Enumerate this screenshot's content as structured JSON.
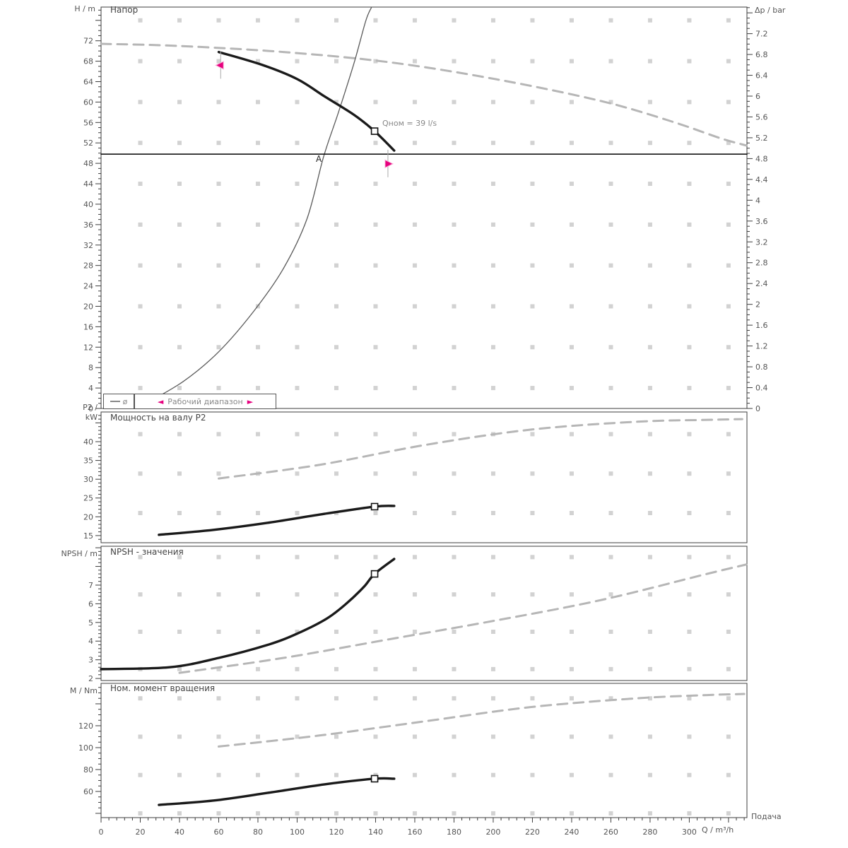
{
  "colors": {
    "curve_max_speed": "#b6b6b6",
    "curve_duty": "#1a1a1a",
    "system_curve": "#5a5a5a",
    "setpoint_line": "#000000",
    "working_range_marker": "#e6007e",
    "grid_dot": "#d2d2d2",
    "axis": "#3c3c3c",
    "tick_label": "#555555",
    "marker_fill": "#ffffff"
  },
  "labels": {
    "h_axis": "H / m",
    "dp_axis": "Δp / bar",
    "p2_axis_line1": "P2 /",
    "p2_axis_line2": "kW",
    "npsh_axis": "NPSH / m",
    "m_axis": "M / Nm"
  },
  "annotations": {
    "duty_point_label": "Qном = 39 l/s",
    "operating_point_label": "A"
  },
  "legend": {
    "curve_symbol": "ø",
    "left_arrow": "◄",
    "right_arrow": "►",
    "working_range": "Рабочий диапазон"
  },
  "x_axis": {
    "title": "Q / m³/h",
    "right_label": "Подача",
    "min": 0,
    "max": 329.4,
    "tick_step": 20,
    "minor_step": 4,
    "labels": [
      "0",
      "20",
      "40",
      "60",
      "80",
      "100",
      "120",
      "140",
      "160",
      "180",
      "200",
      "220",
      "240",
      "260",
      "280",
      "300"
    ],
    "grid_cols": [
      20,
      40,
      60,
      80,
      100,
      120,
      140,
      160,
      180,
      200,
      220,
      240,
      260,
      280,
      300,
      320
    ]
  },
  "chart_data": [
    {
      "type": "line",
      "title": "Напор",
      "y_axis": {
        "label": "H / m",
        "min": 0,
        "max": 78.6,
        "tick_step": 4,
        "minor_step": 1,
        "labels": [
          "0",
          "4",
          "8",
          "12",
          "16",
          "20",
          "24",
          "28",
          "32",
          "36",
          "40",
          "44",
          "48",
          "52",
          "56",
          "60",
          "64",
          "68",
          "72"
        ]
      },
      "y2_axis": {
        "label": "Δp / bar",
        "m_per_unit": 10.1937,
        "tick_step": 0.4,
        "minor_step": 0.1,
        "labels": [
          "0",
          "0.4",
          "0.8",
          "1.2",
          "1.6",
          "2",
          "2.4",
          "2.8",
          "3.2",
          "3.6",
          "4",
          "4.4",
          "4.8",
          "5.2",
          "5.6",
          "6",
          "6.4",
          "6.8",
          "7.2"
        ]
      },
      "grid_rows": [
        4,
        12,
        20,
        28,
        36,
        44,
        52,
        60,
        68,
        76
      ],
      "series": [
        {
          "name": "qh-max-speed",
          "style": "dashed",
          "x": [
            0,
            39,
            93,
            147,
            201,
            255,
            291,
            316,
            329
          ],
          "y": [
            71.4,
            71.0,
            69.8,
            67.8,
            64.5,
            60.2,
            56.2,
            52.9,
            51.5
          ]
        },
        {
          "name": "system-curve",
          "style": "thin",
          "x": [
            22,
            42,
            60,
            78,
            93,
            105,
            113.5,
            121,
            129,
            135,
            138
          ],
          "y": [
            0.8,
            5.3,
            11.1,
            19.1,
            27.4,
            37.1,
            49.3,
            57.9,
            67.6,
            75.9,
            78.6
          ]
        },
        {
          "name": "setpoint-line",
          "style": "setpoint",
          "x": [
            0,
            329.4
          ],
          "y": [
            49.8,
            49.8
          ]
        },
        {
          "name": "qh-control-curve",
          "style": "bold",
          "x": [
            60,
            82,
            100,
            114,
            129,
            139.5,
            149.5
          ],
          "y": [
            69.8,
            67.3,
            64.5,
            61.1,
            57.5,
            54.3,
            50.5
          ]
        }
      ],
      "markers": [
        {
          "shape": "square",
          "name": "duty-point-marker",
          "x": 139.5,
          "y": 54.3
        },
        {
          "shape": "arrow-left",
          "name": "working-range-min-marker",
          "x": 61,
          "y": 67.2,
          "stem": true
        },
        {
          "shape": "arrow-right",
          "name": "working-range-max-marker",
          "x": 146.3,
          "y": 47.9,
          "stem": true
        }
      ]
    },
    {
      "type": "line",
      "title": "Мощность на валу P2",
      "y_axis": {
        "label": "P2 / kW",
        "min": 13.1,
        "max": 47.9,
        "tick_step": 5,
        "minor_step": 1,
        "labels": [
          "15",
          "20",
          "25",
          "30",
          "35",
          "40"
        ]
      },
      "grid_rows": [
        21,
        31.5,
        42
      ],
      "series": [
        {
          "name": "p2-max-speed",
          "style": "dashed",
          "x": [
            60,
            111,
            165,
            219,
            273,
            309,
            327
          ],
          "y": [
            30.2,
            33.8,
            39.1,
            43.2,
            45.3,
            45.8,
            46.0
          ]
        },
        {
          "name": "p2-control-curve",
          "style": "bold",
          "x": [
            29.5,
            57,
            85,
            114,
            139.5,
            149.5
          ],
          "y": [
            15.2,
            16.5,
            18.4,
            20.8,
            22.7,
            22.9
          ]
        }
      ],
      "markers": [
        {
          "shape": "square",
          "name": "duty-point-marker",
          "x": 139.5,
          "y": 22.7
        }
      ]
    },
    {
      "type": "line",
      "title": "NPSH - значения",
      "y_axis": {
        "label": "NPSH / m",
        "min": 1.89,
        "max": 9.08,
        "tick_step": 1,
        "minor_step": 0.2,
        "labels": [
          "2",
          "3",
          "4",
          "5",
          "6",
          "7"
        ]
      },
      "grid_rows": [
        2.5,
        4.5,
        6.5,
        8.5
      ],
      "series": [
        {
          "name": "npsh-max-speed",
          "style": "dashed",
          "x": [
            40,
            93,
            147,
            201,
            255,
            309,
            329
          ],
          "y": [
            2.3,
            3.1,
            4.1,
            5.1,
            6.2,
            7.6,
            8.1
          ]
        },
        {
          "name": "npsh-curve",
          "style": "bold",
          "x": [
            0,
            35,
            60,
            85,
            100,
            115,
            125,
            134,
            139.5,
            149.5
          ],
          "y": [
            2.5,
            2.6,
            3.1,
            3.8,
            4.4,
            5.2,
            6.0,
            6.9,
            7.6,
            8.4
          ]
        }
      ],
      "markers": [
        {
          "shape": "square",
          "name": "duty-point-marker",
          "x": 139.5,
          "y": 7.6
        }
      ]
    },
    {
      "type": "line",
      "title": "Ном. момент вращения",
      "y_axis": {
        "label": "M / Nm",
        "min": 36.1,
        "max": 158.7,
        "tick_step": 20,
        "minor_step": 5,
        "labels": [
          "60",
          "80",
          "100",
          "120"
        ]
      },
      "grid_rows": [
        40,
        75,
        110,
        145
      ],
      "series": [
        {
          "name": "torque-max-speed",
          "style": "dashed",
          "x": [
            60,
            111,
            165,
            219,
            273,
            309,
            328
          ],
          "y": [
            101,
            111,
            124,
            137,
            145,
            148,
            149
          ]
        },
        {
          "name": "torque-control-curve",
          "style": "bold",
          "x": [
            29.5,
            57,
            85,
            114,
            139.5,
            149.5
          ],
          "y": [
            47.7,
            51.6,
            58.7,
            66.5,
            71.6,
            71.6
          ]
        }
      ],
      "markers": [
        {
          "shape": "square",
          "name": "duty-point-marker",
          "x": 139.5,
          "y": 71.6
        }
      ]
    }
  ]
}
